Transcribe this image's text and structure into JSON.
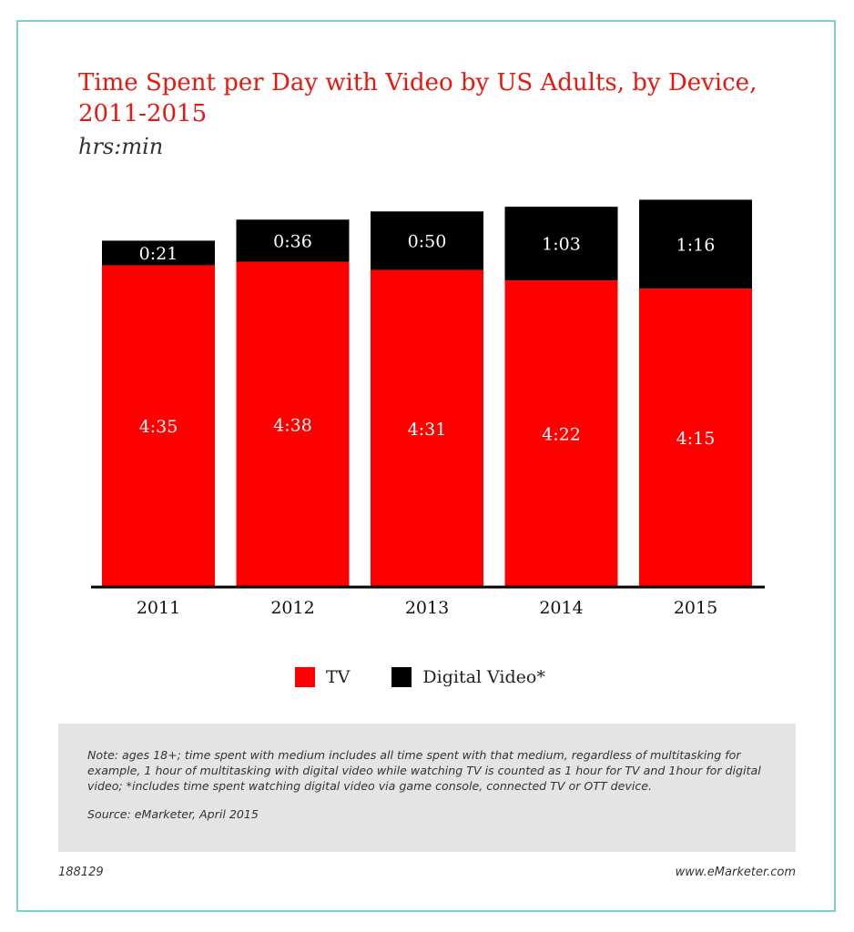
{
  "title": "Time Spent per Day with Video by US Adults, by Device, 2011-2015",
  "unit": "hrs:min",
  "colors": {
    "tv": "#ff0000",
    "digital_video": "#000000",
    "title": "#e8180f",
    "frame": "#7fcfca",
    "note_bg": "#e4e4e4"
  },
  "legend": {
    "tv_label": "TV",
    "digital_label": "Digital Video*"
  },
  "chart_data": {
    "type": "bar",
    "stacked": true,
    "categories": [
      "2011",
      "2012",
      "2013",
      "2014",
      "2015"
    ],
    "series": [
      {
        "name": "TV",
        "values": [
          275,
          278,
          271,
          262,
          255
        ],
        "labels": [
          "4:35",
          "4:38",
          "4:31",
          "4:22",
          "4:15"
        ]
      },
      {
        "name": "Digital Video*",
        "values": [
          21,
          36,
          50,
          63,
          76
        ],
        "labels": [
          "0:21",
          "0:36",
          "0:50",
          "1:03",
          "1:16"
        ]
      }
    ],
    "ylabel": "hrs:min",
    "grid": false,
    "legend": "bottom"
  },
  "note": "Note: ages 18+; time spent with medium includes all time spent with that medium, regardless of multitasking for example, 1 hour of multitasking with digital video while watching TV is counted as 1 hour for TV and 1hour for digital video; *includes time spent watching digital video via game console, connected TV or OTT device.",
  "source": "Source: eMarketer, April 2015",
  "footer": {
    "id": "188129",
    "url": "www.eMarketer.com"
  }
}
